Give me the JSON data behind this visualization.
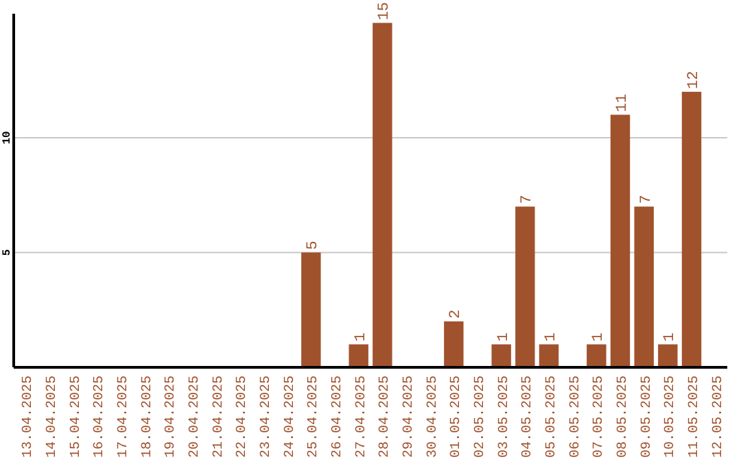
{
  "chart_data": {
    "type": "bar",
    "categories": [
      "13.04.2025",
      "14.04.2025",
      "15.04.2025",
      "16.04.2025",
      "17.04.2025",
      "18.04.2025",
      "19.04.2025",
      "20.04.2025",
      "21.04.2025",
      "22.04.2025",
      "23.04.2025",
      "24.04.2025",
      "25.04.2025",
      "26.04.2025",
      "27.04.2025",
      "28.04.2025",
      "29.04.2025",
      "30.04.2025",
      "01.05.2025",
      "02.05.2025",
      "03.05.2025",
      "04.05.2025",
      "05.05.2025",
      "06.05.2025",
      "07.05.2025",
      "08.05.2025",
      "09.05.2025",
      "10.05.2025",
      "11.05.2025",
      "12.05.2025"
    ],
    "values": [
      0,
      0,
      0,
      0,
      0,
      0,
      0,
      0,
      0,
      0,
      0,
      0,
      5,
      0,
      1,
      15,
      0,
      0,
      2,
      0,
      1,
      7,
      1,
      0,
      1,
      11,
      7,
      1,
      12,
      0
    ],
    "value_labels": [
      null,
      null,
      null,
      null,
      null,
      null,
      null,
      null,
      null,
      null,
      null,
      null,
      "5",
      null,
      "1",
      "15",
      null,
      null,
      "2",
      null,
      "1",
      "7",
      "1",
      null,
      "1",
      "11",
      "7",
      "1",
      "12",
      null
    ],
    "color": "#a0522d",
    "ylim": [
      0,
      15.4
    ],
    "yticks": [
      5,
      10
    ],
    "grid": "y"
  }
}
